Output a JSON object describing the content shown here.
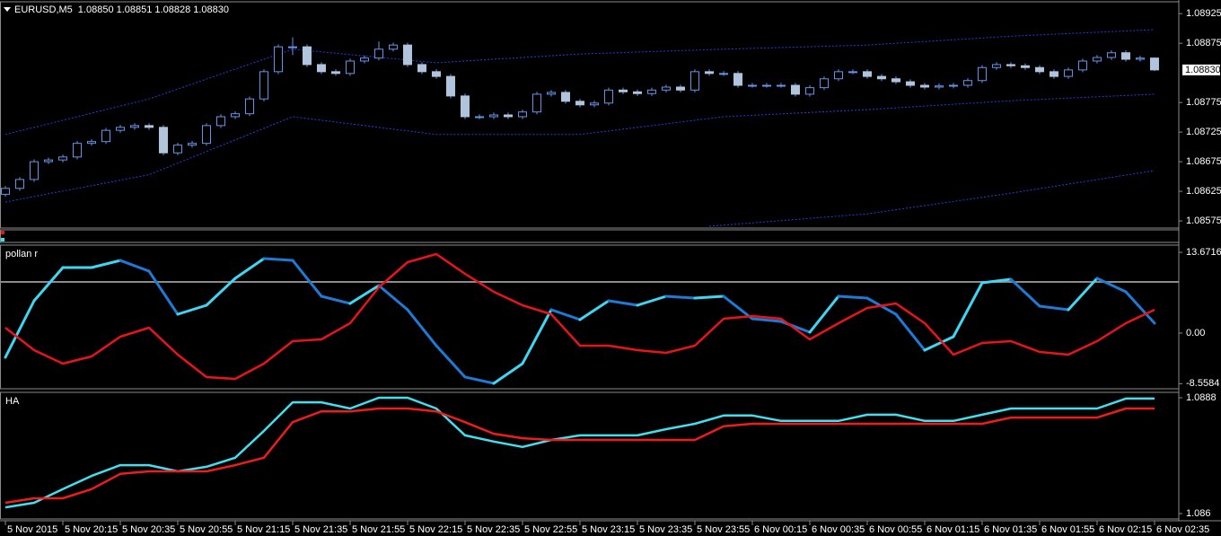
{
  "chart_data": [
    {
      "type": "candlestick",
      "title": "EURUSD,M5",
      "subtitle": "1.08850 1.08851 1.08828 1.08830",
      "xlim": [
        -0.375,
        81.69
      ],
      "ylim": [
        1.08563,
        1.08945
      ],
      "yticks": [
        1.08925,
        1.08875,
        1.08775,
        1.08725,
        1.08675,
        1.08625,
        1.08575
      ],
      "price_tag": {
        "value": 1.0883,
        "label": "1.08830"
      },
      "up_color": "#6495ed",
      "down_color": "#b0c4de",
      "open": [
        1.0862,
        1.0863,
        1.08645,
        1.08675,
        1.08678,
        1.08683,
        1.08706,
        1.08709,
        1.08728,
        1.08733,
        1.08736,
        1.08733,
        1.0869,
        1.08703,
        1.08706,
        1.08736,
        1.08751,
        1.08756,
        1.08781,
        1.08827,
        1.08869,
        1.08869,
        1.08839,
        1.08827,
        1.08824,
        1.08845,
        1.0885,
        1.08865,
        1.08872,
        1.08839,
        1.08827,
        1.08819,
        1.08786,
        1.08751,
        1.08751,
        1.08754,
        1.08751,
        1.08759,
        1.08789,
        1.08792,
        1.08777,
        1.08771,
        1.08774,
        1.08796,
        1.08793,
        1.0879,
        1.08796,
        1.08801,
        1.08796,
        1.08827,
        1.08824,
        1.08824,
        1.08804,
        1.08804,
        1.08804,
        1.08804,
        1.08789,
        1.088,
        1.08815,
        1.08827,
        1.08827,
        1.08819,
        1.08815,
        1.0881,
        1.08804,
        1.08801,
        1.08803,
        1.08804,
        1.08812,
        1.08834,
        1.08839,
        1.08837,
        1.08834,
        1.08827,
        1.08819,
        1.0883,
        1.08845,
        1.08851,
        1.08859,
        1.08848,
        1.0885
      ],
      "high": [
        1.08634,
        1.08649,
        1.08679,
        1.08682,
        1.08687,
        1.0871,
        1.08713,
        1.08732,
        1.08737,
        1.0874,
        1.0874,
        1.08737,
        1.08707,
        1.0871,
        1.0874,
        1.08755,
        1.0876,
        1.08785,
        1.08831,
        1.08873,
        1.08885,
        1.08873,
        1.08843,
        1.08831,
        1.08849,
        1.08854,
        1.08878,
        1.08876,
        1.08876,
        1.08843,
        1.08831,
        1.08823,
        1.0879,
        1.08755,
        1.08758,
        1.08758,
        1.08763,
        1.08793,
        1.08796,
        1.08796,
        1.08781,
        1.08778,
        1.088,
        1.088,
        1.08797,
        1.088,
        1.08805,
        1.08805,
        1.08831,
        1.08831,
        1.08828,
        1.08828,
        1.08808,
        1.08808,
        1.08808,
        1.08808,
        1.08804,
        1.08819,
        1.08831,
        1.08831,
        1.08831,
        1.08823,
        1.08819,
        1.08814,
        1.08808,
        1.08807,
        1.08808,
        1.08816,
        1.08838,
        1.08843,
        1.08843,
        1.08841,
        1.08838,
        1.08831,
        1.08834,
        1.08849,
        1.08855,
        1.08863,
        1.08863,
        1.08854,
        1.08851
      ],
      "low": [
        1.08616,
        1.08626,
        1.08641,
        1.08671,
        1.08674,
        1.08679,
        1.08702,
        1.08705,
        1.08724,
        1.08729,
        1.08729,
        1.08686,
        1.08686,
        1.08699,
        1.08702,
        1.08732,
        1.08747,
        1.08752,
        1.08777,
        1.08823,
        1.08855,
        1.08835,
        1.08823,
        1.0882,
        1.0882,
        1.08841,
        1.08846,
        1.08861,
        1.08835,
        1.08823,
        1.08815,
        1.08782,
        1.08747,
        1.08747,
        1.08747,
        1.08747,
        1.08747,
        1.08755,
        1.08785,
        1.08773,
        1.08767,
        1.08767,
        1.0877,
        1.08789,
        1.08786,
        1.08786,
        1.08792,
        1.08792,
        1.08792,
        1.0882,
        1.0882,
        1.088,
        1.088,
        1.088,
        1.088,
        1.08785,
        1.08785,
        1.08796,
        1.08811,
        1.08823,
        1.08815,
        1.08811,
        1.08806,
        1.088,
        1.08797,
        1.08797,
        1.08799,
        1.088,
        1.08808,
        1.0883,
        1.08833,
        1.0883,
        1.08823,
        1.08815,
        1.08815,
        1.08826,
        1.08841,
        1.08847,
        1.08844,
        1.08844,
        1.08828
      ],
      "close": [
        1.0863,
        1.08645,
        1.08675,
        1.08678,
        1.08683,
        1.08706,
        1.08709,
        1.08728,
        1.08733,
        1.08736,
        1.08733,
        1.0869,
        1.08703,
        1.08706,
        1.08736,
        1.08751,
        1.08756,
        1.08781,
        1.08827,
        1.08869,
        1.08869,
        1.08839,
        1.08827,
        1.08824,
        1.08845,
        1.0885,
        1.08865,
        1.08872,
        1.08839,
        1.08827,
        1.08819,
        1.08786,
        1.08751,
        1.08751,
        1.08754,
        1.08751,
        1.08759,
        1.08789,
        1.08792,
        1.08777,
        1.08771,
        1.08774,
        1.08796,
        1.08793,
        1.0879,
        1.08796,
        1.08801,
        1.08796,
        1.08827,
        1.08824,
        1.08824,
        1.08804,
        1.08804,
        1.08804,
        1.08804,
        1.08789,
        1.088,
        1.08815,
        1.08827,
        1.08827,
        1.08819,
        1.08815,
        1.0881,
        1.08804,
        1.08801,
        1.08803,
        1.08804,
        1.08812,
        1.08834,
        1.08839,
        1.08837,
        1.08834,
        1.08827,
        1.08819,
        1.0883,
        1.08845,
        1.08851,
        1.08859,
        1.08848,
        1.0885,
        1.0883
      ],
      "bands": [
        {
          "color": "#2a3be0",
          "x": [
            0,
            10,
            20,
            30,
            40,
            50,
            60,
            70,
            80
          ],
          "values": [
            1.08721,
            1.08781,
            1.08865,
            1.08842,
            1.08857,
            1.08865,
            1.08872,
            1.08887,
            1.08898
          ]
        },
        {
          "color": "#2a3be0",
          "x": [
            0,
            10,
            20,
            30,
            40,
            50,
            60,
            70,
            80
          ],
          "values": [
            1.08607,
            1.08653,
            1.08751,
            1.08721,
            1.08721,
            1.08751,
            1.08763,
            1.08778,
            1.08789
          ]
        },
        {
          "color": "#2a3be0",
          "x": [
            49,
            60,
            70,
            80
          ],
          "values": [
            1.08566,
            1.08587,
            1.08622,
            1.0866
          ]
        }
      ]
    },
    {
      "type": "line",
      "title": "pollan r",
      "xlim": [
        -0.375,
        81.69
      ],
      "ylim": [
        -9.42,
        14.89
      ],
      "yticks": [
        13.6716,
        {
          "value": 0,
          "label": "0.00"
        },
        -8.5584
      ],
      "levels": [
        8.66
      ],
      "level_color": "#8c8c8c",
      "x": [
        0,
        2,
        4,
        6,
        8,
        10,
        12,
        14,
        16,
        18,
        20,
        22,
        24,
        26,
        28,
        30,
        32,
        34,
        36,
        38,
        40,
        42,
        44,
        46,
        48,
        50,
        52,
        54,
        56,
        58,
        60,
        62,
        64,
        66,
        68,
        70,
        72,
        74,
        76,
        78,
        80
      ],
      "series": [
        {
          "color": "#1f7ad6",
          "rise_color": "#3fd6f2",
          "values": [
            -4.1,
            5.47,
            11.09,
            11.09,
            12.3,
            10.48,
            3.19,
            4.71,
            9.27,
            12.61,
            12.3,
            6.23,
            5.01,
            8.05,
            3.95,
            -2.13,
            -7.44,
            -8.51,
            -5.16,
            3.95,
            2.28,
            5.47,
            4.71,
            6.23,
            5.92,
            6.23,
            2.43,
            1.97,
            0.15,
            6.23,
            5.92,
            3.19,
            -2.89,
            -0.61,
            8.51,
            9.11,
            4.56,
            3.95,
            9.27,
            6.99,
            1.67
          ]
        },
        {
          "color": "#e8141c",
          "values": [
            0.91,
            -2.89,
            -5.16,
            -3.95,
            -0.61,
            0.91,
            -3.65,
            -7.44,
            -7.75,
            -5.16,
            -1.37,
            -1.06,
            1.67,
            7.75,
            12.0,
            13.37,
            10.03,
            6.99,
            4.71,
            3.19,
            -2.13,
            -2.13,
            -2.89,
            -3.34,
            -2.13,
            2.43,
            2.89,
            2.43,
            -1.06,
            1.67,
            4.25,
            5.01,
            1.67,
            -3.65,
            -1.67,
            -1.37,
            -3.19,
            -3.65,
            -1.37,
            1.67,
            3.95
          ]
        }
      ]
    },
    {
      "type": "line",
      "title": "HA",
      "xlim": [
        -0.375,
        81.69
      ],
      "ylim": [
        1.08587,
        1.08893
      ],
      "yticks": [
        1.0888,
        1.086
      ],
      "x": [
        0,
        2,
        4,
        6,
        8,
        10,
        12,
        14,
        16,
        18,
        20,
        22,
        24,
        26,
        28,
        30,
        32,
        34,
        36,
        38,
        40,
        42,
        44,
        46,
        48,
        50,
        52,
        54,
        56,
        58,
        60,
        62,
        64,
        66,
        68,
        70,
        72,
        74,
        76,
        78,
        80
      ],
      "series": [
        {
          "color": "#40e0f0",
          "values": [
            1.08615,
            1.08626,
            1.08659,
            1.08691,
            1.08717,
            1.08717,
            1.08702,
            1.08713,
            1.08735,
            1.088,
            1.08869,
            1.08869,
            1.08854,
            1.0888,
            1.0888,
            1.08854,
            1.08789,
            1.08774,
            1.08761,
            1.08778,
            1.08789,
            1.08789,
            1.08789,
            1.08804,
            1.08817,
            1.08837,
            1.08837,
            1.08824,
            1.08824,
            1.08824,
            1.08839,
            1.08839,
            1.08824,
            1.08824,
            1.08839,
            1.08854,
            1.08854,
            1.08854,
            1.08854,
            1.08878,
            1.08878
          ]
        },
        {
          "color": "#ee1c1c",
          "values": [
            1.08626,
            1.08637,
            1.08637,
            1.08659,
            1.08696,
            1.08702,
            1.08702,
            1.08702,
            1.08717,
            1.08735,
            1.08821,
            1.08847,
            1.08847,
            1.08854,
            1.08854,
            1.08847,
            1.08821,
            1.08793,
            1.08782,
            1.08778,
            1.08778,
            1.08778,
            1.08778,
            1.08778,
            1.08778,
            1.08811,
            1.08817,
            1.08817,
            1.08817,
            1.08817,
            1.08817,
            1.08817,
            1.08817,
            1.08817,
            1.08817,
            1.08832,
            1.08832,
            1.08832,
            1.08832,
            1.08854,
            1.08854
          ]
        }
      ],
      "xticks": [
        {
          "value": 0,
          "label": "5 Nov 2015"
        },
        {
          "value": 4,
          "label": "5 Nov 20:15"
        },
        {
          "value": 8,
          "label": "5 Nov 20:35"
        },
        {
          "value": 12,
          "label": "5 Nov 20:55"
        },
        {
          "value": 16,
          "label": "5 Nov 21:15"
        },
        {
          "value": 20,
          "label": "5 Nov 21:35"
        },
        {
          "value": 24,
          "label": "5 Nov 21:55"
        },
        {
          "value": 28,
          "label": "5 Nov 22:15"
        },
        {
          "value": 32,
          "label": "5 Nov 22:35"
        },
        {
          "value": 36,
          "label": "5 Nov 22:55"
        },
        {
          "value": 40,
          "label": "5 Nov 23:15"
        },
        {
          "value": 44,
          "label": "5 Nov 23:35"
        },
        {
          "value": 48,
          "label": "5 Nov 23:55"
        },
        {
          "value": 52,
          "label": "6 Nov 00:15"
        },
        {
          "value": 56,
          "label": "6 Nov 00:35"
        },
        {
          "value": 60,
          "label": "6 Nov 00:55"
        },
        {
          "value": 64,
          "label": "6 Nov 01:15"
        },
        {
          "value": 68,
          "label": "6 Nov 01:35"
        },
        {
          "value": 72,
          "label": "6 Nov 01:55"
        },
        {
          "value": 76,
          "label": "6 Nov 02:15"
        },
        {
          "value": 80,
          "label": "6 Nov 02:35"
        }
      ]
    }
  ]
}
